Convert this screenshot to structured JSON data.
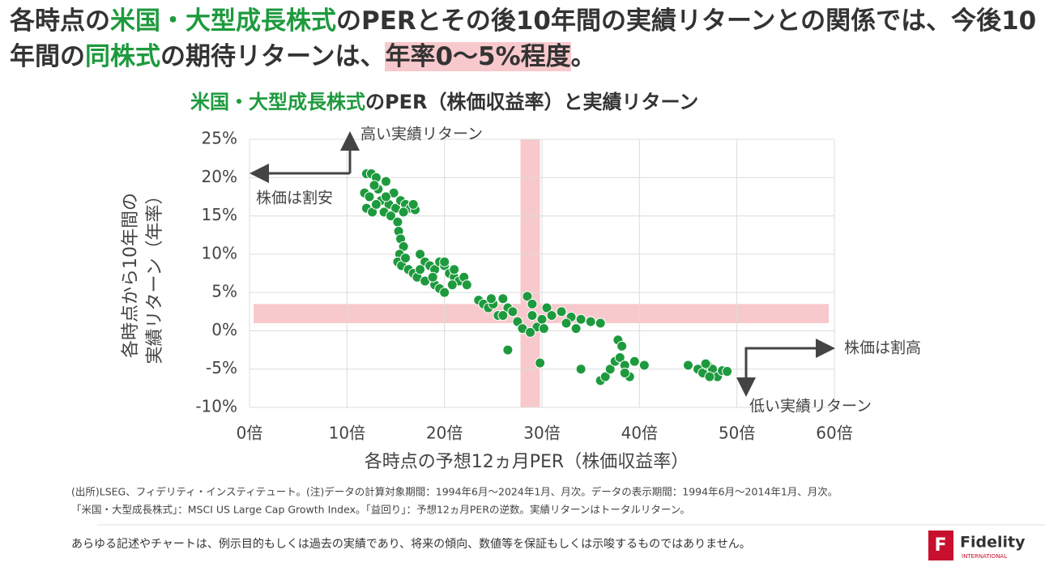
{
  "headline": {
    "segments": [
      {
        "text": "各時点の",
        "color": "#333333"
      },
      {
        "text": "米国・大型成長株式",
        "color": "#1e9a3e"
      },
      {
        "text": "のPERとその後10年間の実績リターンとの関係では、今後10年間の",
        "color": "#333333"
      },
      {
        "text": "同株式",
        "color": "#1e9a3e"
      },
      {
        "text": "の期待リターンは、",
        "color": "#333333"
      },
      {
        "text": "年率0～5%程度",
        "color": "#333333",
        "background": "#f8c9cc"
      },
      {
        "text": "。",
        "color": "#333333"
      }
    ]
  },
  "chart_data": {
    "type": "scatter",
    "title_segments": [
      {
        "text": "米国・大型成長株式",
        "color": "#1e9a3e"
      },
      {
        "text": "のPER（株価収益率）と実績リターン",
        "color": "#333333"
      }
    ],
    "x_label": "各時点の予想12ヵ月PER（株価収益率）",
    "y_label": [
      "各時点から10年間の",
      "実績リターン（年率）"
    ],
    "xlim": [
      0,
      60
    ],
    "ylim": [
      -10,
      25
    ],
    "xticks": [
      {
        "value": 0,
        "label": "0倍"
      },
      {
        "value": 10,
        "label": "10倍"
      },
      {
        "value": 20,
        "label": "20倍"
      },
      {
        "value": 30,
        "label": "30倍"
      },
      {
        "value": 40,
        "label": "40倍"
      },
      {
        "value": 50,
        "label": "50倍"
      },
      {
        "value": 60,
        "label": "60倍"
      }
    ],
    "yticks": [
      {
        "value": -10,
        "label": "-10%"
      },
      {
        "value": -5,
        "label": "-5%"
      },
      {
        "value": 0,
        "label": "0%"
      },
      {
        "value": 5,
        "label": "5%"
      },
      {
        "value": 10,
        "label": "10%"
      },
      {
        "value": 15,
        "label": "15%"
      },
      {
        "value": 20,
        "label": "20%"
      },
      {
        "value": 25,
        "label": "25%"
      }
    ],
    "grid": true,
    "highlight_x": [
      27.8,
      29.8
    ],
    "highlight_y": [
      1,
      3.5
    ],
    "highlight_color": "#f8c9cc",
    "annotations": {
      "high_return": "高い実績リターン",
      "cheap": "株価は割安",
      "expensive": "株価は割高",
      "low_return": "低い実績リターン"
    },
    "series": [
      {
        "color": "#1e9a3e",
        "x": [
          12,
          12.5,
          13,
          11.8,
          12.3,
          12,
          12.6,
          13.2,
          13.5,
          14,
          14.3,
          14.8,
          13.8,
          15,
          15.5,
          16,
          16.5,
          17,
          14.5,
          15.2,
          15.8,
          13,
          14,
          12.8,
          16.8,
          15.3,
          15.5,
          15.8,
          15.4,
          15.2,
          15.6,
          16,
          16.3,
          16.8,
          17.2,
          17.5,
          18,
          18.5,
          19,
          19.5,
          20,
          20.5,
          21,
          21.5,
          22,
          18,
          19,
          19.5,
          20,
          20.8,
          17.5,
          18.8,
          22.3,
          20,
          21,
          23.5,
          24,
          24.5,
          25,
          25.5,
          26,
          26.5,
          27,
          26,
          24.8,
          27.5,
          28.5,
          28,
          29,
          29.5,
          30,
          30.5,
          31,
          29,
          28.8,
          30.2,
          32,
          33,
          33.5,
          34,
          35,
          36,
          32.5,
          26.5,
          29.8,
          34,
          36,
          36.5,
          37,
          37.5,
          38,
          38.5,
          37.8,
          38.2,
          39,
          39.5,
          40.5,
          38.5,
          45,
          46,
          46.5,
          47,
          47.5,
          48,
          48.5,
          47.2,
          49,
          46.8
        ],
        "values": [
          20.5,
          20.5,
          20,
          18,
          17.5,
          16,
          15.5,
          18.5,
          17,
          19.5,
          16.5,
          18,
          15.5,
          16,
          17,
          16.5,
          16,
          15.8,
          15,
          14.2,
          15.5,
          16.5,
          17.5,
          19,
          16.5,
          13,
          12,
          11,
          10,
          9,
          8.5,
          9.5,
          8,
          7.5,
          7,
          10,
          9,
          8.5,
          8,
          9,
          8.5,
          7.5,
          7,
          6.5,
          7,
          6.5,
          6,
          5.5,
          5,
          6,
          8,
          7,
          6,
          9,
          8,
          4,
          3.5,
          3,
          3.5,
          2,
          4.2,
          3,
          2.5,
          2,
          4.2,
          1.2,
          4.5,
          0.3,
          2,
          0.5,
          1.5,
          3,
          2,
          3.5,
          -0.2,
          0.3,
          2.5,
          1.8,
          0.3,
          1.5,
          1.2,
          1,
          1,
          -2.5,
          -4.2,
          -5,
          -6.5,
          -6,
          -5,
          -4,
          -3.5,
          -4.5,
          -1.2,
          -2,
          -6,
          -4,
          -4.5,
          -5.5,
          -4.5,
          -5,
          -5.5,
          -4.5,
          -5,
          -6,
          -5.2,
          -6,
          -5.3,
          -4.3
        ]
      }
    ]
  },
  "footnotes": [
    "(出所)LSEG、フィデリティ・インスティテュート。(注)データの計算対象期間：1994年6月～2024年1月、月次。データの表示期間：1994年6月～2014年1月、月次。",
    "「米国・大型成長株式」：MSCI US Large Cap Growth Index。「益回り」：予想12ヵ月PERの逆数。実績リターンはトータルリターン。"
  ],
  "disclaimer": "あらゆる記述やチャートは、例示目的もしくは過去の実績であり、将来の傾向、数値等を保証もしくは示唆するものではありません。",
  "logo": {
    "name": "Fidelity",
    "sub": "INTERNATIONAL",
    "mark": "F"
  }
}
